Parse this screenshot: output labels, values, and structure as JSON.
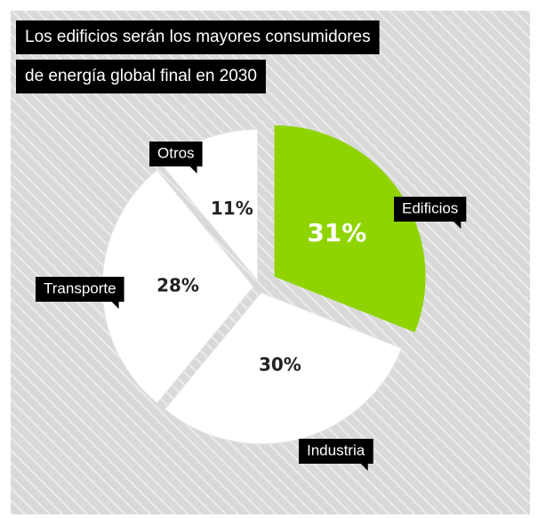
{
  "chart_data": {
    "type": "pie",
    "title": [
      "Los edificios serán los mayores consumidores",
      "de energía global final en 2030"
    ],
    "categories": [
      "Edificios",
      "Industria",
      "Transporte",
      "Otros"
    ],
    "values": [
      31,
      30,
      28,
      11
    ],
    "value_labels": [
      "31%",
      "30%",
      "28%",
      "11%"
    ],
    "colors": [
      "#8fd400",
      "#ffffff",
      "#ffffff",
      "#ffffff"
    ]
  }
}
